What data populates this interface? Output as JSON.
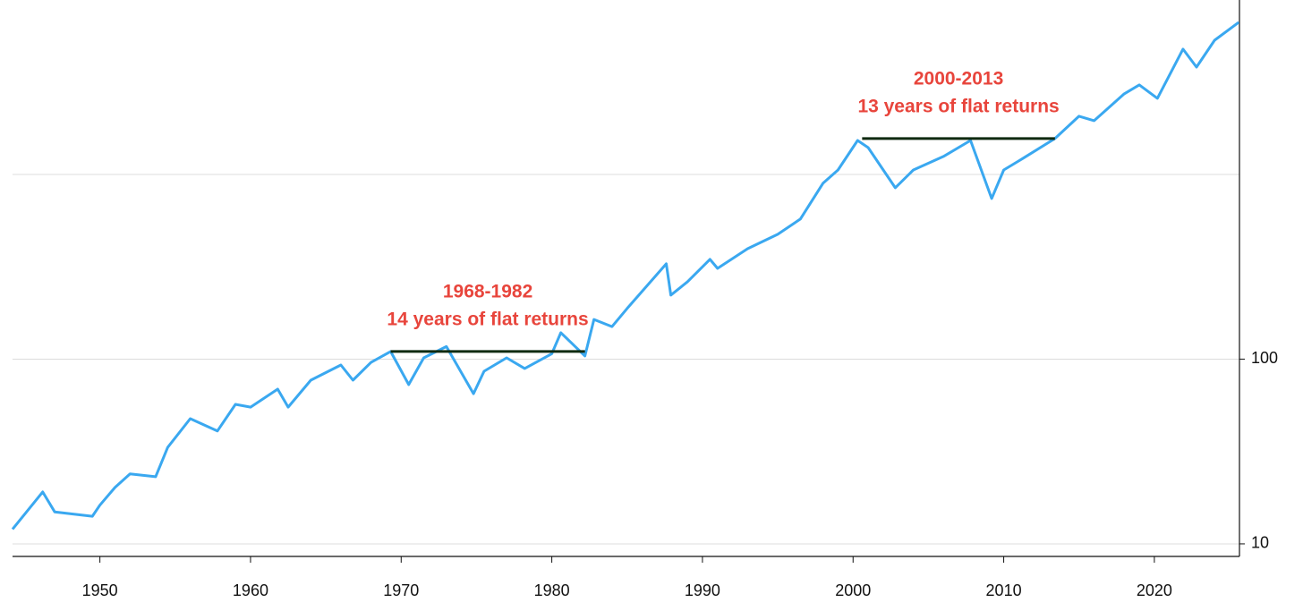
{
  "chart_data": {
    "type": "line",
    "log_scale": true,
    "xlim": [
      1944.2,
      2025.65
    ],
    "xticks": [
      1950,
      1960,
      1970,
      1980,
      1990,
      2000,
      2010,
      2020
    ],
    "ylim": [
      8.55,
      8790
    ],
    "yticks": [
      10,
      100
    ],
    "ygrid": [
      10,
      100,
      1000
    ],
    "series": [
      {
        "color": "#3aa8f0",
        "x": [
          1944.2,
          1946.2,
          1947,
          1949.5,
          1950,
          1951,
          1952,
          1953.7,
          1954.5,
          1956,
          1957.8,
          1959,
          1960,
          1961.8,
          1962.5,
          1964,
          1966,
          1966.8,
          1968,
          1969.3,
          1970.5,
          1971.5,
          1973,
          1974.8,
          1975.5,
          1977,
          1978.2,
          1980,
          1980.6,
          1982.2,
          1982.8,
          1984,
          1985,
          1987.6,
          1987.9,
          1989,
          1990.5,
          1991,
          1993,
          1995,
          1996.5,
          1998,
          1999,
          2000.3,
          2001,
          2002.8,
          2004,
          2006,
          2007.8,
          2009.2,
          2010,
          2011,
          2013.4,
          2015,
          2016,
          2018,
          2019,
          2020.2,
          2021.9,
          2022.8,
          2024,
          2025.6
        ],
        "values": [
          12,
          19.1,
          14.9,
          14.1,
          16.2,
          20.2,
          23.9,
          23.1,
          33.3,
          47.6,
          40.8,
          56.9,
          55,
          68.8,
          55,
          76.9,
          93,
          76.9,
          96,
          110,
          72.8,
          101.6,
          117,
          65,
          86,
          101.6,
          89,
          107,
          139,
          104,
          164,
          150,
          188,
          328,
          222,
          262,
          347,
          310,
          396,
          474,
          573,
          895,
          1057,
          1527,
          1397,
          846,
          1057,
          1250,
          1527,
          740,
          1057,
          1183,
          1563,
          2065,
          1953,
          2728,
          3050,
          2580,
          4766,
          3811,
          5323,
          6656
        ]
      }
    ],
    "annotations": [
      {
        "start": 1969.3,
        "end": 1982.2,
        "level": 110,
        "color": "#e8453c",
        "lines": [
          "1968-1982",
          "14 years of flat returns"
        ]
      },
      {
        "start": 2000.6,
        "end": 2013.4,
        "level": 1563,
        "color": "#e8453c",
        "lines": [
          "2000-2013",
          "13 years of flat returns"
        ]
      }
    ]
  }
}
